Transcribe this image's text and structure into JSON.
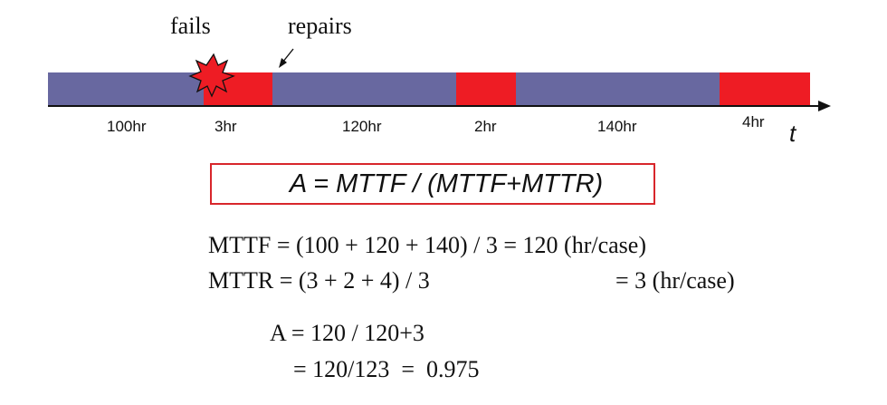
{
  "labels": {
    "fails": "fails",
    "repairs": "repairs",
    "t": "t"
  },
  "timeline": {
    "segments": [
      {
        "state": "up",
        "label": "100hr"
      },
      {
        "state": "down",
        "label": "3hr"
      },
      {
        "state": "up",
        "label": "120hr"
      },
      {
        "state": "down",
        "label": "2hr"
      },
      {
        "state": "up",
        "label": "140hr"
      },
      {
        "state": "down",
        "label": "4hr"
      }
    ],
    "colors": {
      "up": "#6868a0",
      "down": "#ee1c24",
      "burst": "#ee1c24"
    }
  },
  "formula": "A = MTTF / (MTTF+MTTR)",
  "equations": {
    "mttf_lhs": "MTTF = (100 + 120 + 140) / 3 = 120 (hr/case)",
    "mttr_lhs": "MTTR = (3 + 2 + 4) / 3",
    "mttr_rhs": "= 3 (hr/case)",
    "a_line1": "A = 120 / 120+3",
    "a_line2": "= 120/123  =  0.975"
  }
}
